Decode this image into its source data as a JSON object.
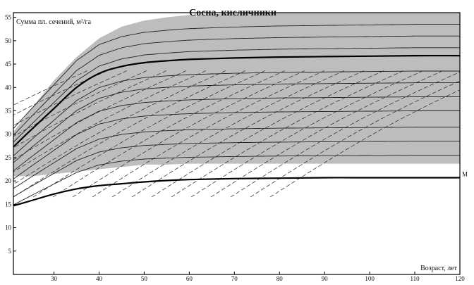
{
  "chart_data": {
    "type": "line",
    "title": "Сосна, кисличники",
    "ylabel": "Сумма пл. сечений, м²/га",
    "xlabel": "Возраст, лет",
    "xlim": [
      21,
      120
    ],
    "ylim": [
      0,
      56
    ],
    "x_ticks": [
      30,
      40,
      50,
      60,
      70,
      80,
      90,
      100,
      110,
      120
    ],
    "y_ticks": [
      5,
      10,
      15,
      20,
      25,
      30,
      35,
      40,
      45,
      50,
      55
    ],
    "grid": false,
    "shaded_region": {
      "x": [
        21,
        25,
        30,
        35,
        40,
        45,
        50,
        55,
        60,
        70,
        80,
        90,
        100,
        110,
        120
      ],
      "upper": [
        30.5,
        35.5,
        41.5,
        46.5,
        50.5,
        53,
        54.3,
        55,
        55.5,
        55.8,
        56,
        56,
        56,
        56,
        56
      ],
      "lower": [
        21,
        21,
        21.5,
        22,
        22.5,
        23,
        23.5,
        23.5,
        23.7,
        23.7,
        23.7,
        23.7,
        23.7,
        23.7,
        23.7
      ]
    },
    "bold_curves": [
      {
        "label": "M",
        "x": [
          21,
          25,
          30,
          35,
          40,
          45,
          50,
          55,
          60,
          70,
          80,
          90,
          100,
          110,
          120
        ],
        "y": [
          14.7,
          15.8,
          17.2,
          18.3,
          19,
          19.4,
          19.8,
          20.1,
          20.3,
          20.5,
          20.6,
          20.7,
          20.7,
          20.7,
          20.7
        ]
      },
      {
        "label": "",
        "x": [
          21,
          25,
          30,
          35,
          40,
          45,
          50,
          55,
          60,
          70,
          80,
          90,
          100,
          110,
          120
        ],
        "y": [
          27.3,
          31,
          35.5,
          40,
          43,
          44.5,
          45.3,
          45.7,
          46,
          46.3,
          46.5,
          46.6,
          46.7,
          46.8,
          46.8
        ]
      }
    ],
    "thin_curves_asymptotes": [
      25.5,
      28.5,
      31.5,
      35,
      38,
      41,
      43.5,
      48.5,
      51,
      53.5
    ],
    "dashed_lines_count": 22
  }
}
